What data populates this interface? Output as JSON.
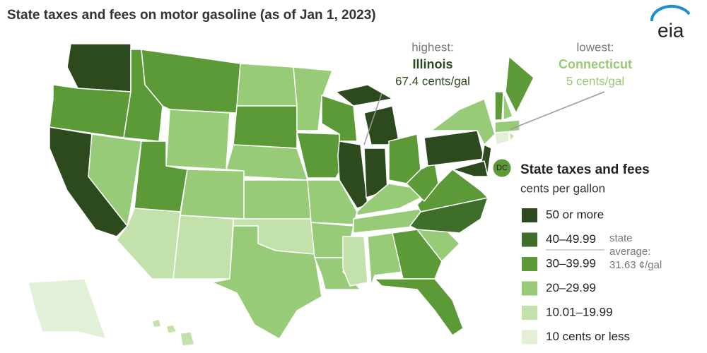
{
  "header": {
    "title": "State taxes and fees on motor gasoline (as of Jan 1, 2023)",
    "logo": "eia"
  },
  "callouts": {
    "highest": {
      "label": "highest:",
      "state": "Illinois",
      "value": "67.4 cents/gal"
    },
    "lowest": {
      "label": "lowest:",
      "state": "Connecticut",
      "value": "5 cents/gal"
    }
  },
  "dc_label": "DC",
  "legend": {
    "title": "State taxes and fees",
    "subtitle": "cents per gallon",
    "bins": [
      {
        "label": "50 or more",
        "color": "#2c4a1d"
      },
      {
        "label": "40–49.99",
        "color": "#3f6e2b"
      },
      {
        "label": "30–39.99",
        "color": "#5b9a37"
      },
      {
        "label": "20–29.99",
        "color": "#97cb77"
      },
      {
        "label": "10.01–19.99",
        "color": "#c3e1aa"
      },
      {
        "label": "10 cents or less",
        "color": "#e3f0d8"
      }
    ],
    "average": [
      "state",
      "average:",
      "31.63 ¢/gal"
    ]
  }
}
